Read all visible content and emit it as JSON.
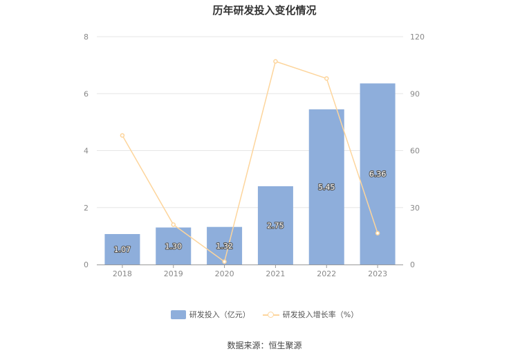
{
  "chart_data": {
    "type": "bar",
    "title": "历年研发投入变化情况",
    "categories": [
      "2018",
      "2019",
      "2020",
      "2021",
      "2022",
      "2023"
    ],
    "series": [
      {
        "name": "研发投入（亿元）",
        "kind": "bar",
        "axis": "left",
        "values": [
          1.07,
          1.3,
          1.32,
          2.75,
          5.45,
          6.36
        ],
        "labels": [
          "1.07",
          "1.30",
          "1.32",
          "2.75",
          "5.45",
          "6.36"
        ]
      },
      {
        "name": "研发投入增长率（%）",
        "kind": "line",
        "axis": "right",
        "values": [
          68,
          21,
          1.5,
          107,
          98,
          16.5
        ]
      }
    ],
    "y_left": {
      "min": 0,
      "max": 8,
      "ticks": [
        0,
        2,
        4,
        6,
        8
      ]
    },
    "y_right": {
      "min": 0,
      "max": 120,
      "ticks": [
        0,
        30,
        60,
        90,
        120
      ]
    },
    "grid": true,
    "legend_position": "bottom",
    "colors": {
      "bar": "#8eaedb",
      "line": "#fdd59c",
      "grid": "#e6e6e6",
      "axis": "#999999",
      "tick_text": "#888888"
    }
  },
  "source": "数据来源：恒生聚源"
}
